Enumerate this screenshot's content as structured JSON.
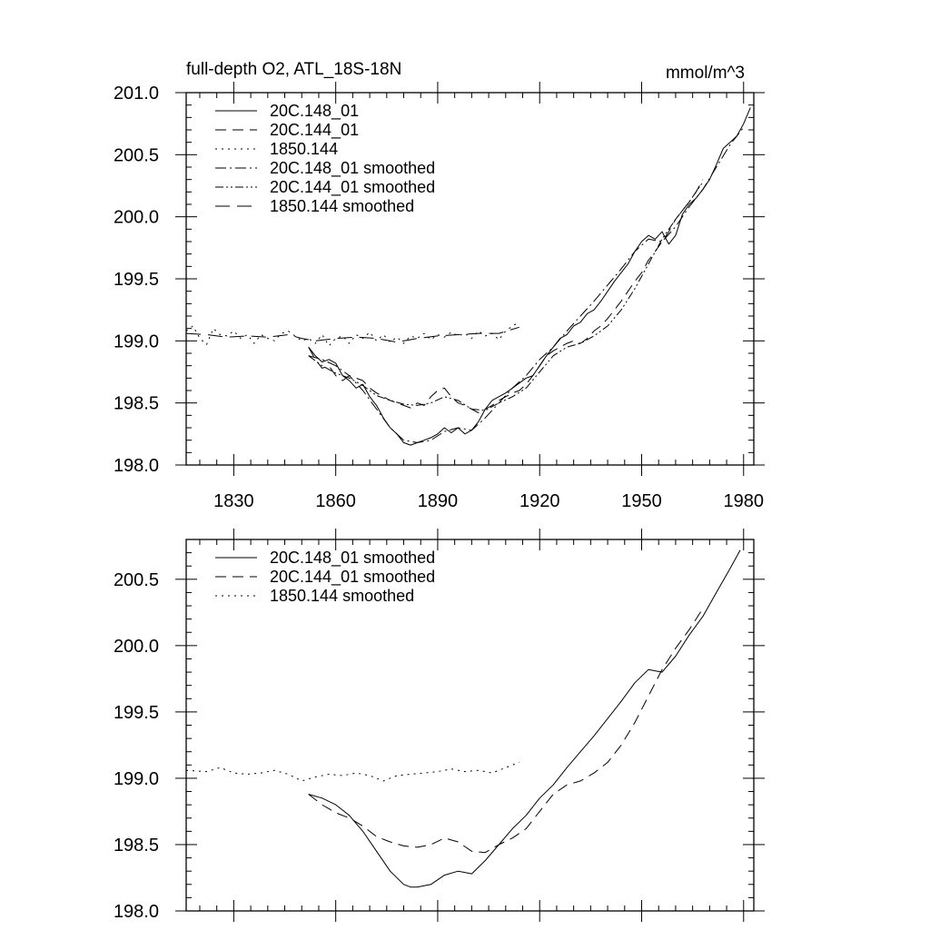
{
  "chart_data": [
    {
      "type": "line",
      "title": "full-depth O2, ATL_18S-18N",
      "units": "mmol/m^3",
      "xlim": [
        1816,
        1983
      ],
      "ylim": [
        198.0,
        201.0
      ],
      "xticks": [
        1830,
        1860,
        1890,
        1920,
        1950,
        1980
      ],
      "yticks": [
        198.0,
        198.5,
        199.0,
        199.5,
        200.0,
        200.5,
        201.0
      ],
      "ytick_labels": [
        "198.0",
        "198.5",
        "199.0",
        "199.5",
        "200.0",
        "200.5",
        "201.0"
      ],
      "legend_position": "top-left",
      "series": [
        {
          "name": "20C.148_01",
          "dash": "solid",
          "color": "#000000",
          "x": [
            1852,
            1854,
            1856,
            1858,
            1860,
            1862,
            1864,
            1866,
            1868,
            1870,
            1872,
            1874,
            1876,
            1878,
            1880,
            1882,
            1884,
            1886,
            1888,
            1890,
            1892,
            1894,
            1896,
            1898,
            1900,
            1902,
            1904,
            1906,
            1908,
            1910,
            1912,
            1914,
            1916,
            1918,
            1920,
            1922,
            1924,
            1926,
            1928,
            1930,
            1932,
            1934,
            1936,
            1938,
            1940,
            1942,
            1944,
            1946,
            1948,
            1950,
            1952,
            1954,
            1956,
            1958,
            1960,
            1962,
            1964,
            1966,
            1968,
            1970,
            1972,
            1974,
            1976,
            1978,
            1980,
            1982
          ],
          "y": [
            198.95,
            198.88,
            198.83,
            198.85,
            198.82,
            198.72,
            198.68,
            198.62,
            198.65,
            198.55,
            198.48,
            198.38,
            198.3,
            198.25,
            198.18,
            198.16,
            198.18,
            198.2,
            198.22,
            198.25,
            198.3,
            198.26,
            198.3,
            198.25,
            198.28,
            198.35,
            198.45,
            198.52,
            198.55,
            198.58,
            198.62,
            198.66,
            198.7,
            198.72,
            198.8,
            198.88,
            198.95,
            199.02,
            199.05,
            199.12,
            199.15,
            199.22,
            199.25,
            199.32,
            199.4,
            199.48,
            199.55,
            199.62,
            199.72,
            199.8,
            199.85,
            199.82,
            199.88,
            199.78,
            199.85,
            200.02,
            200.1,
            200.15,
            200.22,
            200.3,
            200.42,
            200.55,
            200.6,
            200.65,
            200.75,
            200.88
          ]
        },
        {
          "name": "20C.144_01",
          "dash": "dashed",
          "color": "#000000",
          "x": [
            1852,
            1854,
            1856,
            1858,
            1860,
            1862,
            1864,
            1866,
            1868,
            1870,
            1872,
            1874,
            1876,
            1878,
            1880,
            1882,
            1884,
            1886,
            1888,
            1890,
            1892,
            1894,
            1896,
            1898,
            1900,
            1902,
            1904,
            1906,
            1908,
            1910,
            1912,
            1914,
            1916,
            1918,
            1920,
            1922,
            1924,
            1926,
            1928,
            1930,
            1932,
            1934,
            1936,
            1938,
            1940,
            1942,
            1944,
            1946,
            1948,
            1950,
            1952,
            1954,
            1956,
            1958,
            1960,
            1962,
            1964,
            1966,
            1968
          ],
          "y": [
            198.95,
            198.85,
            198.78,
            198.8,
            198.72,
            198.68,
            198.72,
            198.7,
            198.68,
            198.62,
            198.58,
            198.55,
            198.52,
            198.5,
            198.48,
            198.46,
            198.5,
            198.48,
            198.55,
            198.6,
            198.62,
            198.55,
            198.5,
            198.48,
            198.45,
            198.42,
            198.45,
            198.48,
            198.52,
            198.55,
            198.58,
            198.6,
            198.65,
            198.72,
            198.8,
            198.88,
            198.92,
            198.95,
            198.98,
            199.0,
            198.98,
            199.02,
            199.08,
            199.12,
            199.18,
            199.25,
            199.32,
            199.4,
            199.48,
            199.55,
            199.65,
            199.72,
            199.8,
            199.88,
            199.98,
            200.05,
            200.12,
            200.2,
            200.3
          ]
        },
        {
          "name": "1850.144",
          "dash": "dotted",
          "color": "#000000",
          "x": [
            1816,
            1818,
            1820,
            1822,
            1824,
            1826,
            1828,
            1830,
            1832,
            1834,
            1836,
            1838,
            1840,
            1842,
            1844,
            1846,
            1848,
            1850,
            1852,
            1854,
            1856,
            1858,
            1860,
            1862,
            1864,
            1866,
            1868,
            1870,
            1872,
            1874,
            1876,
            1878,
            1880,
            1882,
            1884,
            1886,
            1888,
            1890,
            1892,
            1894,
            1896,
            1898,
            1900,
            1902,
            1904,
            1906,
            1908,
            1910,
            1912,
            1914
          ],
          "y": [
            199.08,
            199.12,
            199.02,
            198.97,
            199.1,
            199.05,
            199.04,
            199.08,
            199.02,
            199.05,
            198.98,
            199.05,
            199.02,
            199.0,
            199.06,
            199.08,
            199.04,
            199.0,
            199.02,
            198.98,
            199.05,
            198.96,
            199.02,
            199.04,
            198.98,
            199.05,
            199.02,
            199.07,
            199.0,
            199.05,
            198.99,
            199.03,
            198.98,
            199.04,
            199.02,
            199.06,
            199.01,
            199.05,
            199.03,
            199.07,
            199.04,
            199.06,
            199.02,
            199.08,
            199.04,
            199.06,
            199.01,
            199.08,
            199.12,
            199.15
          ]
        },
        {
          "name": "20C.148_01 smoothed",
          "dash": "dashdot",
          "color": "#000000",
          "x": [
            1852,
            1856,
            1860,
            1864,
            1868,
            1872,
            1876,
            1880,
            1884,
            1888,
            1892,
            1896,
            1900,
            1904,
            1908,
            1912,
            1916,
            1920,
            1924,
            1928,
            1932,
            1936,
            1940,
            1944,
            1948,
            1952,
            1956,
            1960,
            1964,
            1968,
            1972,
            1976,
            1980
          ],
          "y": [
            198.88,
            198.85,
            198.8,
            198.72,
            198.6,
            198.45,
            198.3,
            198.2,
            198.18,
            198.2,
            198.27,
            198.3,
            198.28,
            198.38,
            198.5,
            198.62,
            198.72,
            198.85,
            198.95,
            199.08,
            199.2,
            199.32,
            199.45,
            199.58,
            199.72,
            199.82,
            199.8,
            199.92,
            200.08,
            200.22,
            200.4,
            200.58,
            200.72
          ]
        },
        {
          "name": "20C.144_01 smoothed",
          "dash": "dashdotdot",
          "color": "#000000",
          "x": [
            1852,
            1856,
            1860,
            1864,
            1868,
            1872,
            1876,
            1880,
            1884,
            1888,
            1892,
            1896,
            1900,
            1904,
            1908,
            1912,
            1916,
            1920,
            1924,
            1928,
            1932,
            1936,
            1940,
            1944,
            1948,
            1952,
            1956,
            1960,
            1964,
            1968
          ],
          "y": [
            198.88,
            198.8,
            198.74,
            198.7,
            198.64,
            198.56,
            198.52,
            198.49,
            198.48,
            198.5,
            198.55,
            198.52,
            198.45,
            198.44,
            198.5,
            198.55,
            198.62,
            198.75,
            198.88,
            198.95,
            198.98,
            199.04,
            199.12,
            199.25,
            199.42,
            199.62,
            199.82,
            199.98,
            200.12,
            200.28
          ]
        },
        {
          "name": "1850.144 smoothed",
          "dash": "longdash",
          "color": "#000000",
          "x": [
            1816,
            1822,
            1828,
            1834,
            1840,
            1846,
            1850,
            1854,
            1860,
            1866,
            1872,
            1878,
            1884,
            1890,
            1896,
            1902,
            1908,
            1914
          ],
          "y": [
            199.06,
            199.05,
            199.03,
            199.04,
            199.03,
            199.05,
            199.02,
            199.0,
            199.02,
            199.03,
            199.02,
            198.99,
            199.02,
            199.04,
            199.05,
            199.06,
            199.06,
            199.11
          ]
        }
      ]
    },
    {
      "type": "line",
      "xlim": [
        1816,
        1983
      ],
      "ylim": [
        198.0,
        200.8
      ],
      "xticks": [
        1830,
        1860,
        1890,
        1920,
        1950,
        1980
      ],
      "yticks": [
        198.0,
        198.5,
        199.0,
        199.5,
        200.0,
        200.5
      ],
      "ytick_labels": [
        "198.0",
        "198.5",
        "199.0",
        "199.5",
        "200.0",
        "200.5"
      ],
      "legend_position": "top-left",
      "series": [
        {
          "name": "20C.148_01 smoothed",
          "dash": "solid",
          "color": "#000000",
          "x": [
            1852,
            1856,
            1860,
            1864,
            1868,
            1872,
            1876,
            1880,
            1882,
            1884,
            1888,
            1892,
            1896,
            1900,
            1904,
            1908,
            1912,
            1916,
            1920,
            1924,
            1928,
            1932,
            1936,
            1940,
            1944,
            1948,
            1952,
            1956,
            1960,
            1964,
            1968,
            1972,
            1976,
            1979
          ],
          "y": [
            198.88,
            198.85,
            198.8,
            198.72,
            198.6,
            198.45,
            198.3,
            198.2,
            198.18,
            198.18,
            198.2,
            198.27,
            198.3,
            198.28,
            198.38,
            198.5,
            198.62,
            198.72,
            198.85,
            198.95,
            199.08,
            199.2,
            199.32,
            199.45,
            199.58,
            199.72,
            199.82,
            199.8,
            199.92,
            200.08,
            200.22,
            200.4,
            200.58,
            200.72
          ]
        },
        {
          "name": "20C.144_01 smoothed",
          "dash": "dashed",
          "color": "#000000",
          "x": [
            1852,
            1856,
            1860,
            1864,
            1868,
            1872,
            1876,
            1880,
            1884,
            1888,
            1892,
            1896,
            1900,
            1904,
            1908,
            1912,
            1916,
            1920,
            1924,
            1928,
            1932,
            1936,
            1940,
            1944,
            1948,
            1952,
            1956,
            1960,
            1964,
            1968
          ],
          "y": [
            198.88,
            198.8,
            198.74,
            198.7,
            198.64,
            198.56,
            198.52,
            198.49,
            198.48,
            198.5,
            198.55,
            198.52,
            198.45,
            198.44,
            198.5,
            198.55,
            198.62,
            198.75,
            198.88,
            198.95,
            198.98,
            199.04,
            199.12,
            199.25,
            199.42,
            199.62,
            199.82,
            199.98,
            200.12,
            200.28
          ]
        },
        {
          "name": "1850.144 smoothed",
          "dash": "dotted",
          "color": "#000000",
          "x": [
            1816,
            1822,
            1826,
            1830,
            1834,
            1838,
            1842,
            1846,
            1850,
            1854,
            1858,
            1862,
            1866,
            1870,
            1874,
            1878,
            1882,
            1886,
            1890,
            1894,
            1898,
            1902,
            1906,
            1910,
            1914
          ],
          "y": [
            199.06,
            199.05,
            199.08,
            199.04,
            199.03,
            199.04,
            199.06,
            199.03,
            198.98,
            199.01,
            199.03,
            199.02,
            199.04,
            199.02,
            198.98,
            199.02,
            199.03,
            199.04,
            199.05,
            199.07,
            199.05,
            199.06,
            199.04,
            199.08,
            199.12
          ]
        }
      ]
    }
  ]
}
